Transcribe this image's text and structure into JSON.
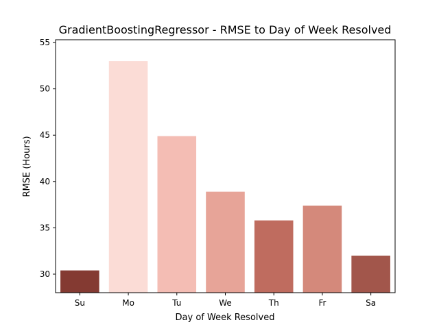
{
  "chart_data": {
    "type": "bar",
    "title": "GradientBoostingRegressor - RMSE to Day of Week Resolved",
    "xlabel": "Day of Week Resolved",
    "ylabel": "RMSE (Hours)",
    "categories": [
      "Su",
      "Mo",
      "Tu",
      "We",
      "Th",
      "Fr",
      "Sa"
    ],
    "values": [
      30.4,
      53.0,
      44.9,
      38.9,
      35.8,
      37.4,
      32.0
    ],
    "colors": [
      "#843a32",
      "#fbdcd6",
      "#f4bdb4",
      "#e7a498",
      "#bf6c5f",
      "#d4897b",
      "#a2564b"
    ],
    "ylim": [
      28,
      55.3
    ],
    "yticks": [
      30,
      35,
      40,
      45,
      50,
      55
    ],
    "grid": false
  }
}
